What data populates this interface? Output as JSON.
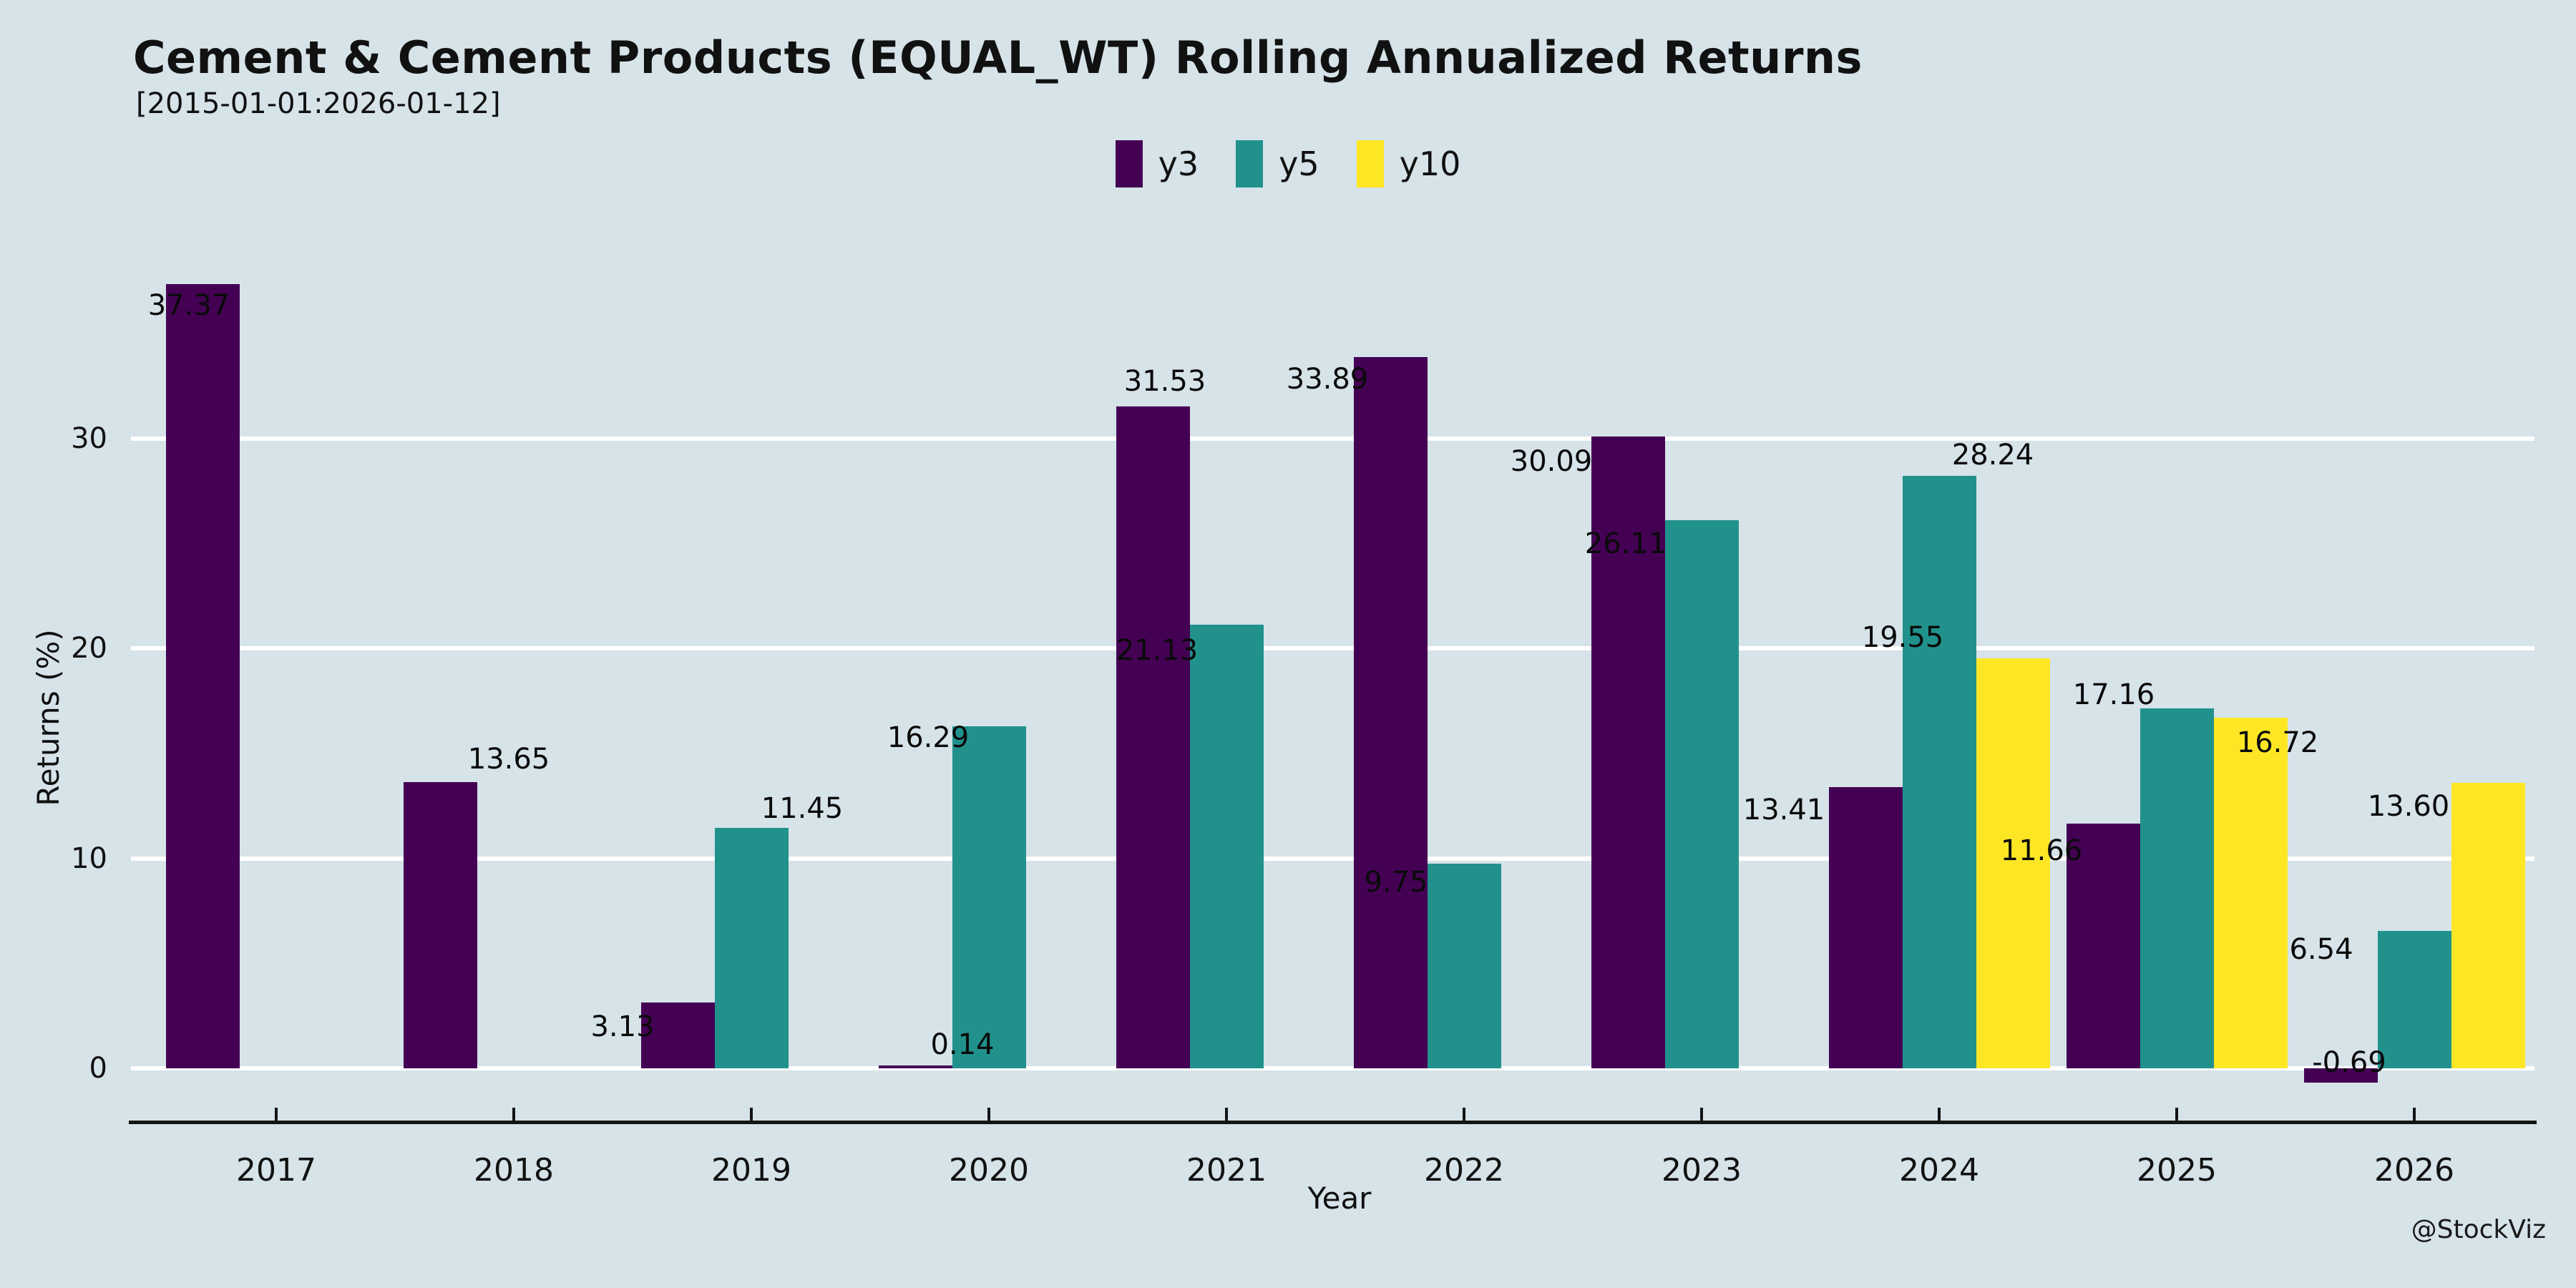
{
  "chart_data": {
    "type": "bar",
    "title": "Cement & Cement Products (EQUAL_WT) Rolling Annualized Returns",
    "subtitle": "[2015-01-01:2026-01-12]",
    "xlabel": "Year",
    "ylabel": "Returns (%)",
    "categories": [
      "2017",
      "2018",
      "2019",
      "2020",
      "2021",
      "2022",
      "2023",
      "2024",
      "2025",
      "2026"
    ],
    "series": [
      {
        "name": "y3",
        "color": "#440154",
        "values": [
          37.37,
          13.65,
          3.13,
          0.14,
          31.53,
          33.89,
          30.09,
          13.41,
          11.66,
          -0.69
        ],
        "labels": [
          "37.37",
          "13.65",
          "3.13",
          "0.14",
          "31.53",
          "33.89",
          "30.09",
          "13.41",
          "11.66",
          "-0.69"
        ]
      },
      {
        "name": "y5",
        "color": "#21918c",
        "values": [
          null,
          null,
          11.45,
          16.29,
          21.13,
          9.75,
          26.11,
          28.24,
          17.16,
          6.54
        ],
        "labels": [
          null,
          null,
          "11.45",
          "16.29",
          "21.13",
          "9.75",
          "26.11",
          "28.24",
          "17.16",
          "6.54"
        ]
      },
      {
        "name": "y10",
        "color": "#fde725",
        "values": [
          null,
          null,
          null,
          null,
          null,
          null,
          null,
          19.55,
          16.72,
          13.6
        ],
        "labels": [
          null,
          null,
          null,
          null,
          null,
          null,
          null,
          "19.55",
          "16.72",
          "13.60"
        ]
      }
    ],
    "yticks": [
      0,
      10,
      20,
      30
    ],
    "ylim": [
      -2.6,
      38.8
    ],
    "grid": "horizontal-white-lines",
    "legend_position": "top-center",
    "background_color": "#d6e3e9",
    "source": "@StockViz"
  }
}
